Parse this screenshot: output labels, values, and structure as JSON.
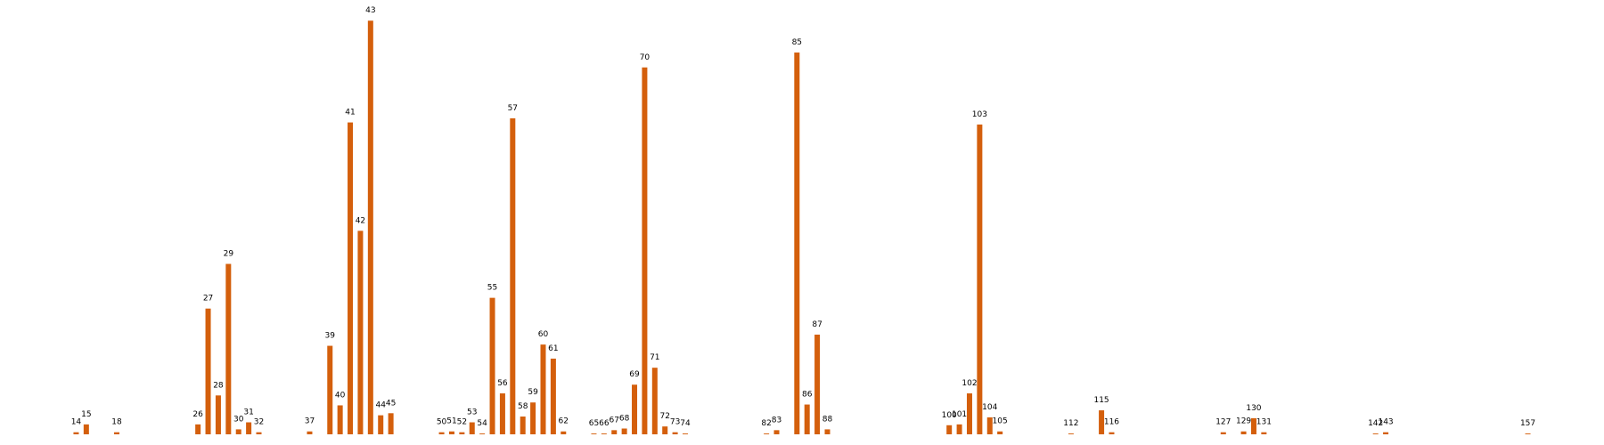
{
  "chart_data": {
    "type": "bar",
    "color": "#d45f0c",
    "x": [
      14,
      15,
      18,
      26,
      27,
      28,
      29,
      30,
      31,
      32,
      37,
      39,
      40,
      41,
      42,
      43,
      44,
      45,
      50,
      51,
      52,
      53,
      54,
      55,
      56,
      57,
      58,
      59,
      60,
      61,
      62,
      65,
      66,
      67,
      68,
      69,
      70,
      71,
      72,
      73,
      74,
      82,
      83,
      85,
      86,
      87,
      88,
      100,
      101,
      102,
      103,
      104,
      105,
      112,
      115,
      116,
      127,
      129,
      130,
      131,
      142,
      143,
      157
    ],
    "values": [
      0.5,
      2.4,
      0.5,
      2.4,
      30.4,
      9.4,
      41.2,
      1.2,
      2.9,
      0.5,
      0.7,
      21.4,
      7.0,
      75.4,
      49.2,
      100,
      4.6,
      5.1,
      0.5,
      0.7,
      0.5,
      2.9,
      0.2,
      33.0,
      9.9,
      76.4,
      4.3,
      7.7,
      21.7,
      18.3,
      0.7,
      0.2,
      0.2,
      1.0,
      1.4,
      12.0,
      88.7,
      16.1,
      1.9,
      0.5,
      0.2,
      0.2,
      1.0,
      92.3,
      7.2,
      24.1,
      1.2,
      2.2,
      2.4,
      9.9,
      74.9,
      4.1,
      0.7,
      0.2,
      5.8,
      0.5,
      0.5,
      0.7,
      3.9,
      0.5,
      0.2,
      0.5,
      0.2
    ],
    "xlim": [
      6.5,
      164.5
    ],
    "ylim": [
      0,
      105
    ]
  }
}
